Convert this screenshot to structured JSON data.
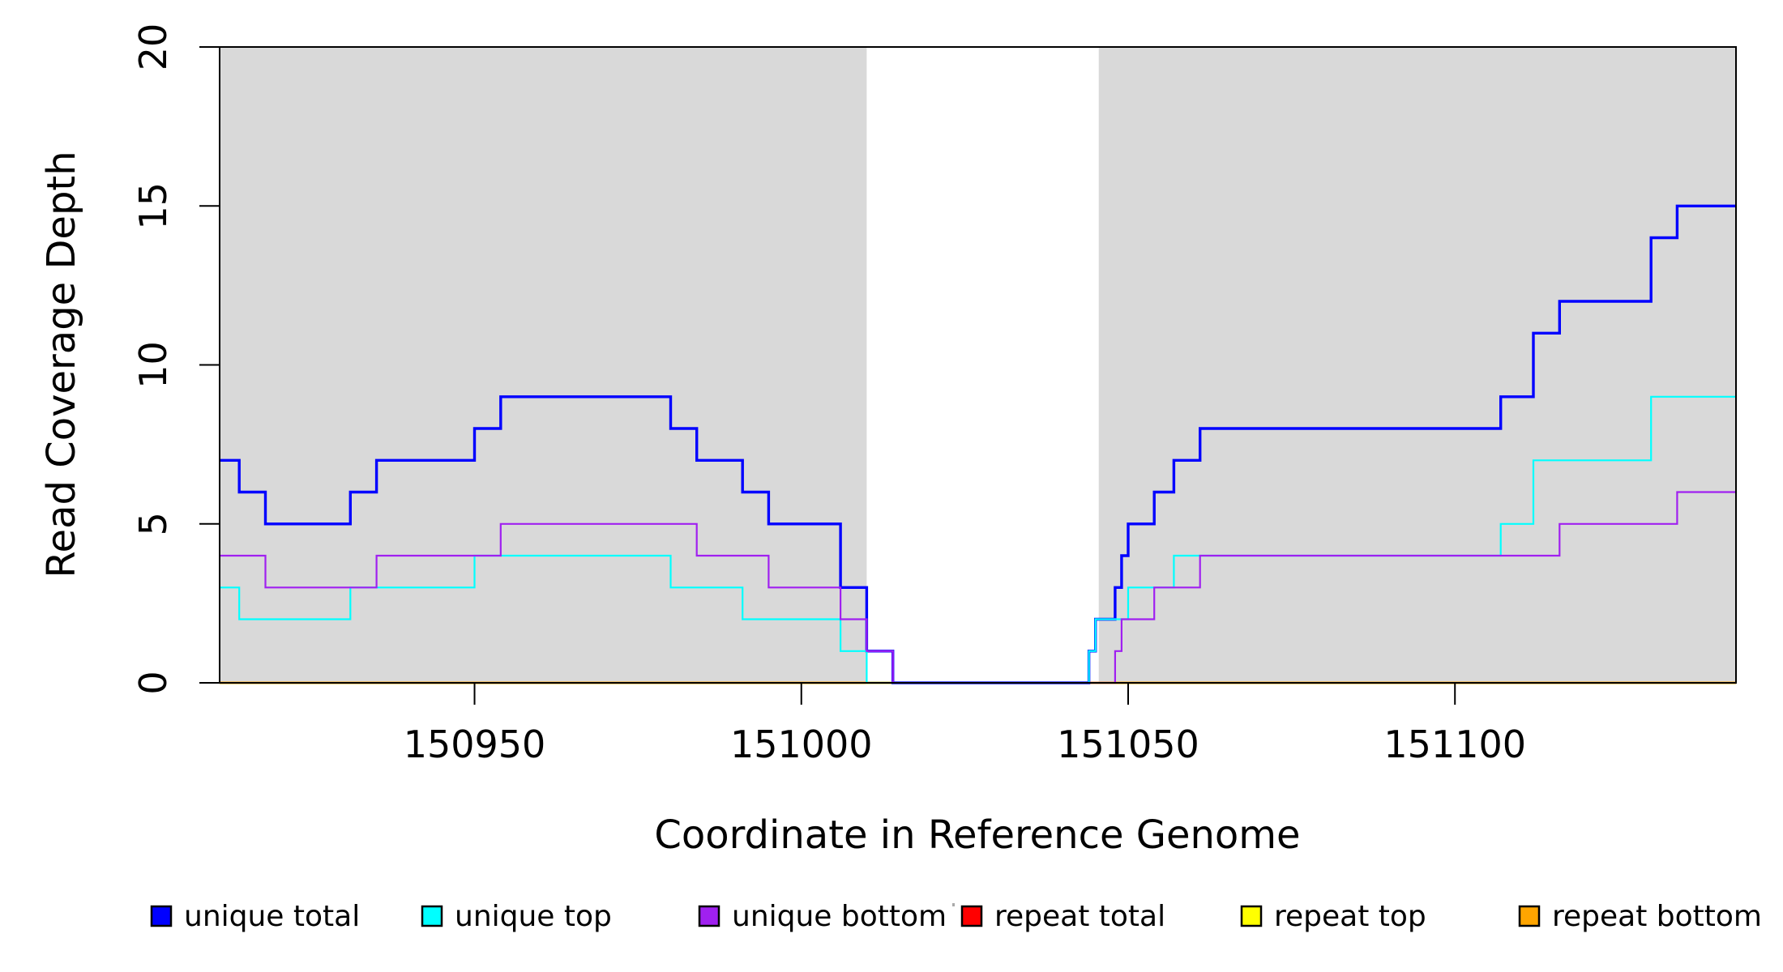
{
  "chart_data": {
    "type": "line",
    "subtype": "step-coverage",
    "title": "",
    "xlabel": "Coordinate in Reference Genome",
    "ylabel": "Read Coverage Depth",
    "xlim": [
      150911,
      151143
    ],
    "ylim": [
      0,
      20
    ],
    "xticks": [
      "150950",
      "151000",
      "151050",
      "151100"
    ],
    "xtick_values": [
      150950,
      151000,
      151050,
      151100
    ],
    "yticks": [
      "0",
      "5",
      "10",
      "15",
      "20"
    ],
    "ytick_values": [
      0,
      5,
      10,
      15,
      20
    ],
    "grid": false,
    "panel_background": "#ffffff",
    "shaded_region_color": "#d9d9d9",
    "axis_color": "#000000",
    "shaded_regions": [
      {
        "name": "shaded-region-left",
        "x1": 150911,
        "x2": 151010
      },
      {
        "name": "shaded-region-right",
        "x1": 151045.5,
        "x2": 151143
      }
    ],
    "series": [
      {
        "id": "unique_total",
        "name": "unique total",
        "color": "#0000ff",
        "line_width": 3.4,
        "steps": [
          [
            150911,
            7
          ],
          [
            150914,
            6
          ],
          [
            150918,
            5
          ],
          [
            150931,
            6
          ],
          [
            150935,
            7
          ],
          [
            150950,
            8
          ],
          [
            150954,
            9
          ],
          [
            150980,
            8
          ],
          [
            150984,
            7
          ],
          [
            150991,
            6
          ],
          [
            150995,
            5
          ],
          [
            151006,
            3
          ],
          [
            151010,
            1
          ],
          [
            151014,
            0
          ],
          [
            151044,
            1
          ],
          [
            151045,
            2
          ],
          [
            151048,
            3
          ],
          [
            151049,
            4
          ],
          [
            151050,
            5
          ],
          [
            151054,
            6
          ],
          [
            151057,
            7
          ],
          [
            151061,
            8
          ],
          [
            151107,
            9
          ],
          [
            151112,
            11
          ],
          [
            151116,
            12
          ],
          [
            151130,
            14
          ],
          [
            151134,
            15
          ]
        ],
        "x_end": 151143
      },
      {
        "id": "unique_top",
        "name": "unique top",
        "color": "#00ffff",
        "line_width": 2.2,
        "steps": [
          [
            150911,
            3
          ],
          [
            150914,
            2
          ],
          [
            150931,
            3
          ],
          [
            150950,
            4
          ],
          [
            150980,
            3
          ],
          [
            150991,
            2
          ],
          [
            151006,
            1
          ],
          [
            151010,
            0
          ],
          [
            151044,
            1
          ],
          [
            151045,
            2
          ],
          [
            151050,
            3
          ],
          [
            151057,
            4
          ],
          [
            151107,
            5
          ],
          [
            151112,
            7
          ],
          [
            151130,
            9
          ]
        ],
        "x_end": 151143
      },
      {
        "id": "unique_bottom",
        "name": "unique bottom",
        "color": "#a020f0",
        "line_width": 2.2,
        "steps": [
          [
            150911,
            4
          ],
          [
            150918,
            3
          ],
          [
            150935,
            4
          ],
          [
            150954,
            5
          ],
          [
            150984,
            4
          ],
          [
            150995,
            3
          ],
          [
            151006,
            2
          ],
          [
            151010,
            1
          ],
          [
            151014,
            0
          ],
          [
            151048,
            1
          ],
          [
            151049,
            2
          ],
          [
            151054,
            3
          ],
          [
            151061,
            4
          ],
          [
            151116,
            5
          ],
          [
            151134,
            6
          ]
        ],
        "x_end": 151143
      },
      {
        "id": "repeat_total",
        "name": "repeat total",
        "color": "#ff0000",
        "line_width": 2.2,
        "steps": [
          [
            150911,
            0
          ]
        ],
        "x_end": 151143
      },
      {
        "id": "repeat_top",
        "name": "repeat top",
        "color": "#ffff00",
        "line_width": 2.2,
        "steps": [
          [
            150911,
            0
          ]
        ],
        "x_end": 151143
      },
      {
        "id": "repeat_bottom",
        "name": "repeat bottom",
        "color": "#ffa500",
        "line_width": 3.0,
        "steps": [
          [
            150911,
            0
          ]
        ],
        "x_end": 151143
      }
    ],
    "draw_order": [
      "repeat_total",
      "repeat_top",
      "repeat_bottom",
      "unique_total",
      "unique_top",
      "unique_bottom"
    ],
    "legend": {
      "position": "bottom",
      "entries": [
        {
          "label": "unique total",
          "color": "#0000ff"
        },
        {
          "label": "unique top",
          "color": "#00ffff"
        },
        {
          "label": "unique bottom",
          "color": "#a020f0"
        },
        {
          "label": "repeat total",
          "color": "#ff0000"
        },
        {
          "label": "repeat top",
          "color": "#ffff00"
        },
        {
          "label": "repeat bottom",
          "color": "#ffa500"
        }
      ]
    }
  }
}
